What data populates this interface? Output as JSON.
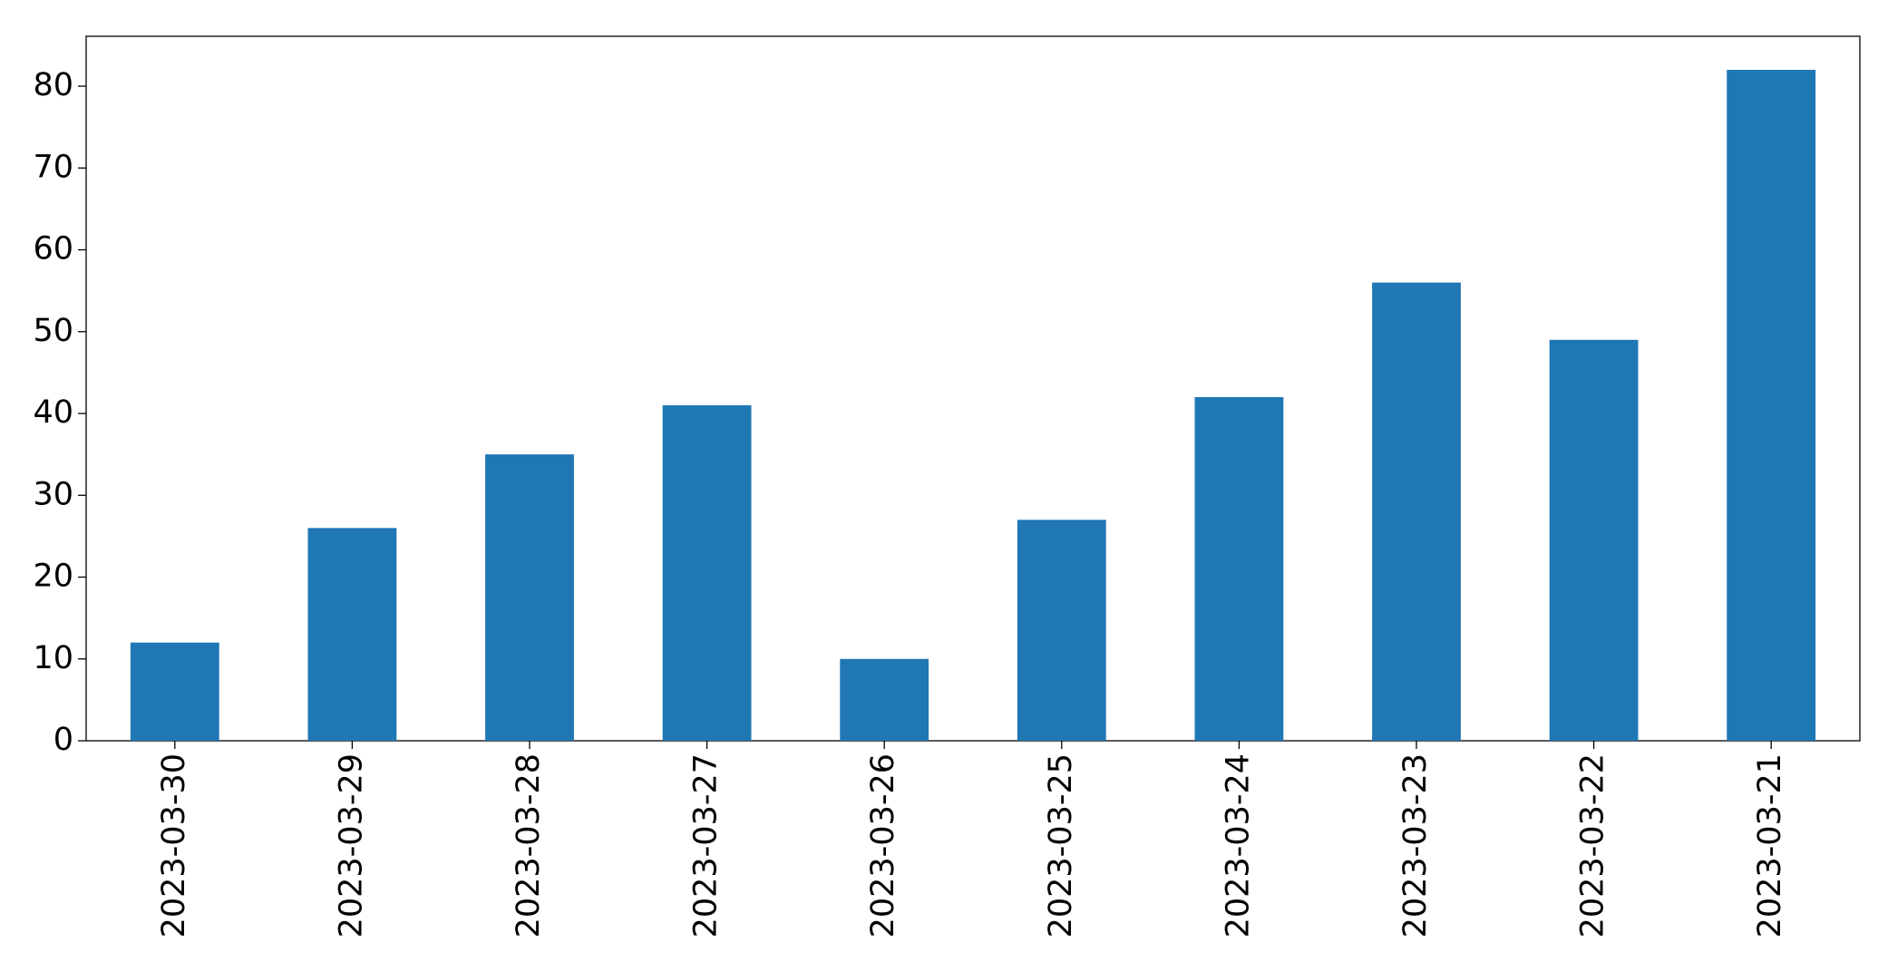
{
  "chart_data": {
    "type": "bar",
    "categories": [
      "2023-03-30",
      "2023-03-29",
      "2023-03-28",
      "2023-03-27",
      "2023-03-26",
      "2023-03-25",
      "2023-03-24",
      "2023-03-23",
      "2023-03-22",
      "2023-03-21"
    ],
    "values": [
      12,
      26,
      35,
      41,
      10,
      27,
      42,
      56,
      49,
      82
    ],
    "color": "#1f77b4",
    "ylim": [
      0,
      86.1
    ],
    "yticks": [
      0,
      10,
      20,
      30,
      40,
      50,
      60,
      70,
      80
    ],
    "grid": false
  }
}
